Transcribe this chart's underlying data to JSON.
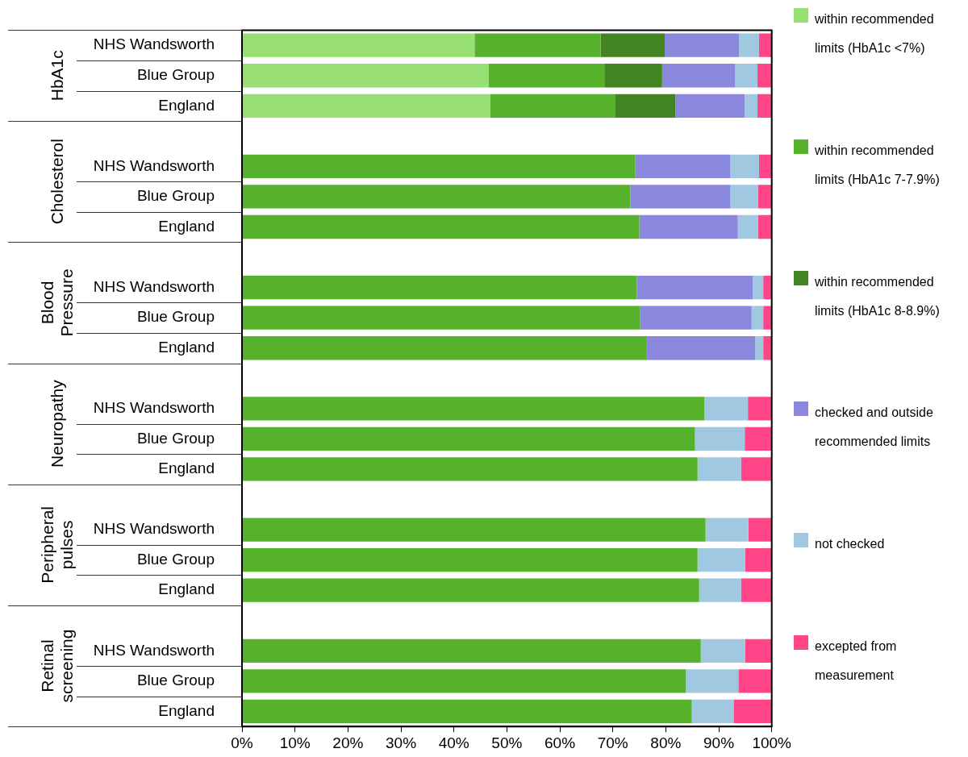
{
  "chart_data": {
    "type": "bar",
    "orientation": "horizontal",
    "stacked": true,
    "legend": "right",
    "grid": false,
    "categories": [
      "NHS Wandsworth",
      "Blue Group",
      "England",
      null,
      "NHS Wandsworth",
      "Blue Group",
      "England",
      null,
      "NHS Wandsworth",
      "Blue Group",
      "England",
      null,
      "NHS Wandsworth",
      "Blue Group",
      "England",
      null,
      "NHS Wandsworth",
      "Blue Group",
      "England",
      null,
      "NHS Wandsworth",
      "Blue Group",
      "England"
    ],
    "annotations": [
      "HbA1c",
      "Cholesterol",
      "Blood Pressure",
      "Neuropathy",
      "Peripheral pulses",
      "Retinal screening"
    ],
    "xlim": [
      0,
      100
    ],
    "xticks": [
      {
        "value": 0,
        "label": "0%"
      },
      {
        "value": 10,
        "label": "10%"
      },
      {
        "value": 20,
        "label": "20%"
      },
      {
        "value": 30,
        "label": "30%"
      },
      {
        "value": 40,
        "label": "40%"
      },
      {
        "value": 50,
        "label": "50%"
      },
      {
        "value": 60,
        "label": "60%"
      },
      {
        "value": 70,
        "label": "70%"
      },
      {
        "value": 80,
        "label": "80%"
      },
      {
        "value": 90,
        "label": "90%"
      },
      {
        "value": 100,
        "label": "100%"
      }
    ],
    "series": [
      {
        "name": "within recommended limits (HbA1c <7%)",
        "color": "#98e073",
        "values": [
          43.9,
          46.6,
          46.9,
          null,
          null,
          null,
          null,
          null,
          null,
          null,
          null,
          null,
          null,
          null,
          null,
          null,
          null,
          null,
          null,
          null,
          null,
          null,
          null
        ]
      },
      {
        "name": "within recommended limits (HbA1c 7-7.9%)",
        "color": "#56b12b",
        "values": [
          23.8,
          21.8,
          23.6,
          null,
          74.2,
          73.3,
          75.0,
          null,
          74.5,
          75.1,
          76.3,
          null,
          87.3,
          85.5,
          86.0,
          null,
          87.5,
          86.0,
          86.3,
          null,
          86.6,
          83.8,
          84.9
        ]
      },
      {
        "name": "within recommended limits (HbA1c 8-8.9%)",
        "color": "#428421",
        "values": [
          12.1,
          10.9,
          11.3,
          null,
          null,
          null,
          null,
          null,
          null,
          null,
          null,
          null,
          null,
          null,
          null,
          null,
          null,
          null,
          null,
          null,
          null,
          null,
          null
        ]
      },
      {
        "name": "checked and outside recommended limits",
        "color": "#8a88dd",
        "values": [
          14.0,
          13.8,
          13.1,
          null,
          18.0,
          18.9,
          18.6,
          null,
          21.9,
          21.1,
          20.6,
          null,
          null,
          null,
          null,
          null,
          null,
          null,
          null,
          null,
          null,
          null,
          null
        ]
      },
      {
        "name": "not checked",
        "color": "#a0c8e0",
        "values": [
          3.8,
          4.2,
          2.4,
          null,
          5.4,
          5.2,
          3.8,
          null,
          2.0,
          2.2,
          1.5,
          null,
          8.2,
          9.4,
          8.2,
          null,
          8.1,
          9.0,
          7.9,
          null,
          8.4,
          9.9,
          7.9
        ]
      },
      {
        "name": "excepted from measurement",
        "color": "#ff4488",
        "values": [
          2.4,
          2.7,
          2.7,
          null,
          2.4,
          2.6,
          2.6,
          null,
          1.6,
          1.6,
          1.6,
          null,
          4.5,
          5.1,
          5.8,
          null,
          4.4,
          5.0,
          5.8,
          null,
          5.0,
          6.3,
          7.2
        ]
      }
    ]
  }
}
